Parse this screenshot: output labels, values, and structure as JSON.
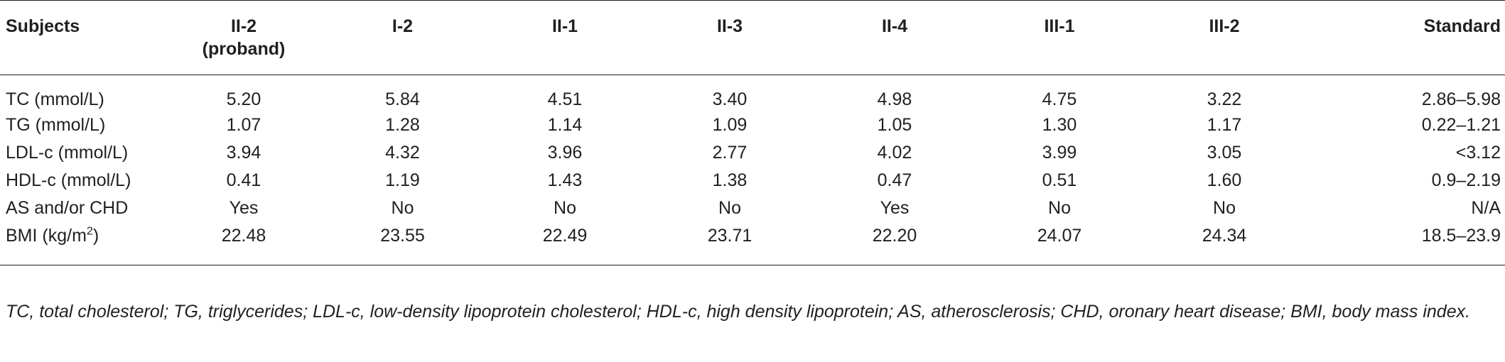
{
  "table": {
    "headers": [
      "Subjects",
      "II-2\n(proband)",
      "I-2",
      "II-1",
      "II-3",
      "II-4",
      "III-1",
      "III-2",
      "Standard"
    ],
    "header_line1": [
      "Subjects",
      "II-2",
      "I-2",
      "II-1",
      "II-3",
      "II-4",
      "III-1",
      "III-2",
      "Standard"
    ],
    "header_line2": [
      "",
      "(proband)",
      "",
      "",
      "",
      "",
      "",
      "",
      ""
    ],
    "rows": [
      {
        "label": "TC (mmol/L)",
        "values": [
          "5.20",
          "5.84",
          "4.51",
          "3.40",
          "4.98",
          "4.75",
          "3.22",
          "2.86–5.98"
        ]
      },
      {
        "label": "TG (mmol/L)",
        "values": [
          "1.07",
          "1.28",
          "1.14",
          "1.09",
          "1.05",
          "1.30",
          "1.17",
          "0.22–1.21"
        ]
      },
      {
        "label": "LDL-c (mmol/L)",
        "values": [
          "3.94",
          "4.32",
          "3.96",
          "2.77",
          "4.02",
          "3.99",
          "3.05",
          "<3.12"
        ]
      },
      {
        "label": "HDL-c (mmol/L)",
        "values": [
          "0.41",
          "1.19",
          "1.43",
          "1.38",
          "0.47",
          "0.51",
          "1.60",
          "0.9–2.19"
        ]
      },
      {
        "label": "AS and/or CHD",
        "values": [
          "Yes",
          "No",
          "No",
          "No",
          "Yes",
          "No",
          "No",
          "N/A"
        ]
      },
      {
        "label": "BMI (kg/m",
        "label_sup": "2",
        "label_suffix": ")",
        "values": [
          "22.48",
          "23.55",
          "22.49",
          "23.71",
          "22.20",
          "24.07",
          "24.34",
          "18.5–23.9"
        ]
      }
    ]
  },
  "footnote": "TC, total cholesterol; TG, triglycerides; LDL-c, low-density lipoprotein cholesterol; HDL-c, high density lipoprotein; AS, atherosclerosis; CHD, oronary heart disease; BMI, body mass index."
}
